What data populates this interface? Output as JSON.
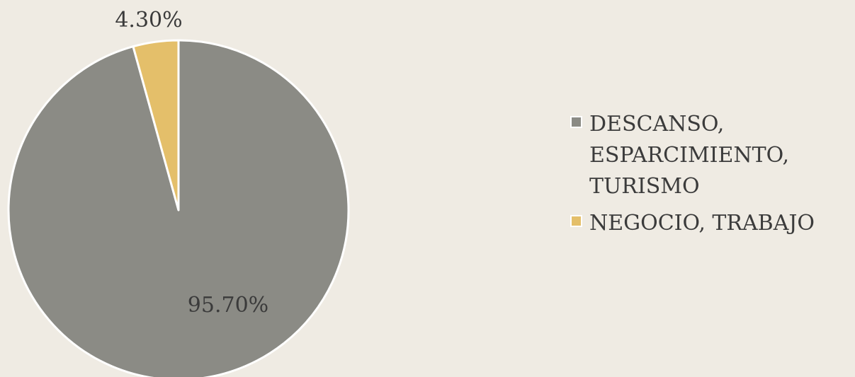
{
  "chart_data": {
    "type": "pie",
    "categories": [
      "DESCANSO, ESPARCIMIENTO, TURISMO",
      "NEGOCIO, TRABAJO"
    ],
    "values": [
      95.7,
      4.3
    ],
    "data_labels": [
      "95.70%",
      "4.30%"
    ],
    "colors": [
      "#8b8b85",
      "#e4bf6a"
    ],
    "legend_position": "right"
  }
}
